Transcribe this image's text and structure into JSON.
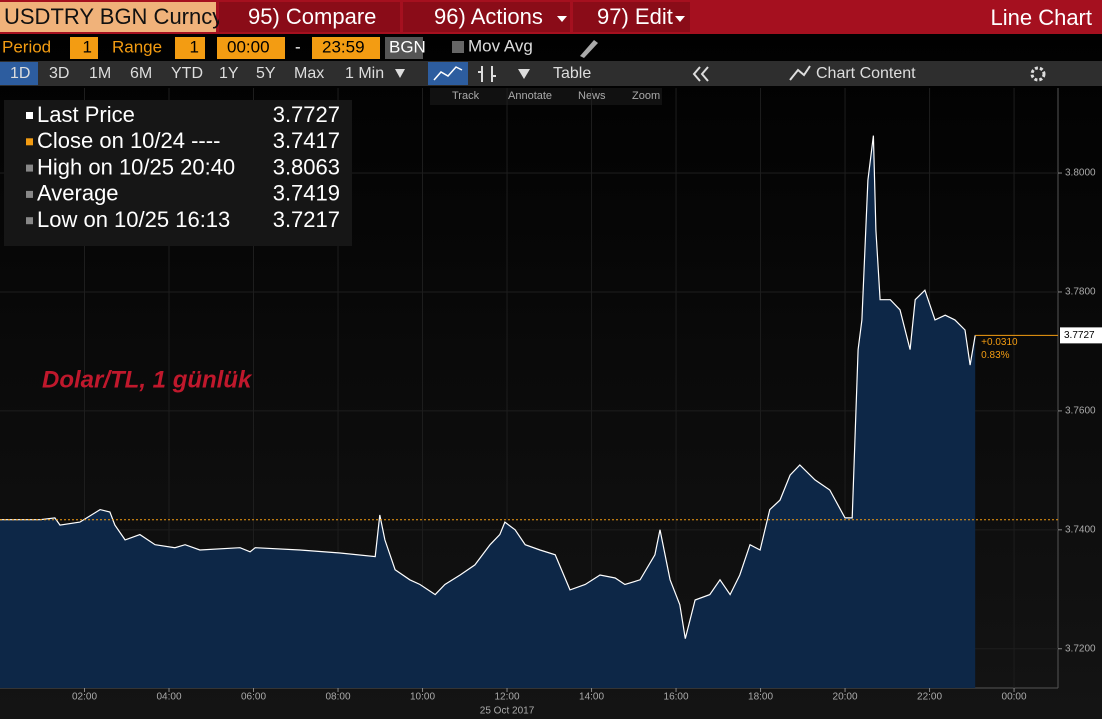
{
  "header": {
    "security": "USDTRY BGN Curncy",
    "menus": [
      "95) Compare",
      "96) Actions",
      "97) Edit"
    ],
    "view": "Line Chart"
  },
  "settings": {
    "period_label": "Period",
    "period": "1",
    "range_label": "Range",
    "range": "1",
    "start": "00:00",
    "separator": "-",
    "end": "23:59",
    "source": "BGN",
    "mov_avg": "Mov Avg"
  },
  "toolbar": {
    "ranges": [
      "1D",
      "3D",
      "1M",
      "6M",
      "YTD",
      "1Y",
      "5Y",
      "Max"
    ],
    "interval": "1 Min",
    "table": "Table",
    "chart_content": "Chart Content"
  },
  "tools": [
    "Track",
    "Annotate",
    "News",
    "Zoom"
  ],
  "chart_data": {
    "type": "line",
    "annotation": "Dolar/TL, 1 günlük",
    "x_title": "25 Oct 2017",
    "grid": true,
    "legend_stats": [
      {
        "name": "Last Price",
        "value": 3.7727
      },
      {
        "name": "Close on 10/24 ----",
        "value": 3.7417
      },
      {
        "name": "High on 10/25 20:40",
        "value": 3.8063
      },
      {
        "name": "Average",
        "value": 3.7419
      },
      {
        "name": "Low on 10/25 16:13",
        "value": 3.7217
      }
    ],
    "change": {
      "value": 0.031,
      "label": "+0.0310"
    },
    "change_pct": {
      "value": 0.83,
      "label": "0.83%"
    },
    "x": [
      0,
      0.95,
      1.3,
      1.42,
      1.89,
      2.37,
      2.6,
      2.72,
      2.96,
      3.31,
      3.67,
      4.14,
      4.38,
      4.73,
      5.68,
      5.92,
      6.04,
      7.1,
      8.05,
      8.88,
      8.99,
      9.11,
      9.35,
      9.7,
      9.94,
      10.3,
      10.53,
      10.89,
      11.24,
      11.6,
      11.83,
      11.95,
      12.19,
      12.43,
      12.78,
      13.14,
      13.49,
      13.85,
      14.2,
      14.56,
      14.79,
      15.15,
      15.5,
      15.62,
      15.86,
      16.09,
      16.22,
      16.45,
      16.8,
      17.04,
      17.28,
      17.51,
      17.75,
      17.99,
      18.22,
      18.46,
      18.7,
      18.93,
      19.29,
      19.64,
      20,
      20.17,
      20.31,
      20.4,
      20.54,
      20.67,
      20.73,
      20.83,
      21.07,
      21.3,
      21.54,
      21.66,
      21.89,
      22.13,
      22.37,
      22.6,
      22.84,
      22.96,
      23.08
    ],
    "series": [
      {
        "color": "#ffffff",
        "fill": "#0d2747",
        "values": [
          3.7417,
          3.7417,
          3.742,
          3.7408,
          3.7413,
          3.7434,
          3.743,
          3.7408,
          3.7383,
          3.7392,
          3.7375,
          3.737,
          3.7375,
          3.7366,
          3.737,
          3.7363,
          3.737,
          3.7366,
          3.7361,
          3.7355,
          3.7425,
          3.7383,
          3.7333,
          3.7316,
          3.7308,
          3.7291,
          3.7308,
          3.7324,
          3.7341,
          3.7375,
          3.7392,
          3.7413,
          3.74,
          3.7375,
          3.7366,
          3.7358,
          3.7299,
          3.7308,
          3.7324,
          3.7319,
          3.7308,
          3.7316,
          3.7358,
          3.74,
          3.7316,
          3.7274,
          3.7217,
          3.7282,
          3.7291,
          3.7316,
          3.7291,
          3.7324,
          3.7375,
          3.7366,
          3.7434,
          3.745,
          3.7492,
          3.7509,
          3.7484,
          3.7467,
          3.742,
          3.742,
          3.7703,
          3.7753,
          3.7988,
          3.8063,
          3.7904,
          3.7787,
          3.7787,
          3.777,
          3.7703,
          3.7787,
          3.7803,
          3.7753,
          3.7761,
          3.7753,
          3.7736,
          3.7677,
          3.7727
        ]
      }
    ],
    "close_color": "#f39c12",
    "xlim": [
      0,
      25.04
    ],
    "xticks": [
      {
        "value": 2,
        "label": "02:00"
      },
      {
        "value": 4,
        "label": "04:00"
      },
      {
        "value": 6,
        "label": "06:00"
      },
      {
        "value": 8,
        "label": "08:00"
      },
      {
        "value": 10,
        "label": "10:00"
      },
      {
        "value": 12,
        "label": "12:00"
      },
      {
        "value": 14,
        "label": "14:00"
      },
      {
        "value": 16,
        "label": "16:00"
      },
      {
        "value": 18,
        "label": "18:00"
      },
      {
        "value": 20,
        "label": "20:00"
      },
      {
        "value": 22,
        "label": "22:00"
      },
      {
        "value": 24,
        "label": "00:00"
      }
    ],
    "ylim": [
      3.7134,
      3.8143
    ],
    "yticks": [
      {
        "value": 3.72,
        "label": "3.7200"
      },
      {
        "value": 3.74,
        "label": "3.7400"
      },
      {
        "value": 3.76,
        "label": "3.7600"
      },
      {
        "value": 3.78,
        "label": "3.7800"
      },
      {
        "value": 3.8,
        "label": "3.8000"
      }
    ]
  }
}
